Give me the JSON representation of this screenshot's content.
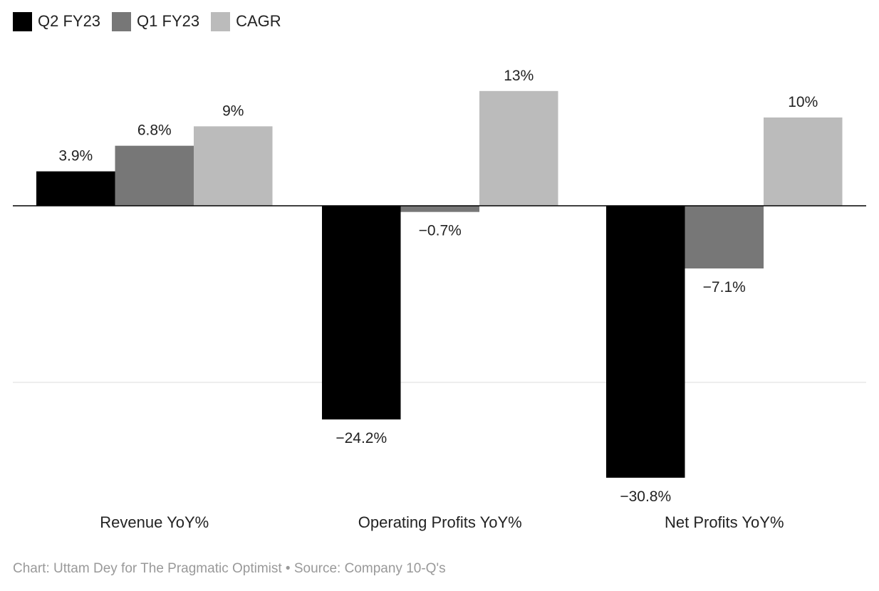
{
  "chart_data": {
    "type": "bar",
    "categories": [
      "Revenue YoY%",
      "Operating Profits YoY%",
      "Net Profits YoY%"
    ],
    "series": [
      {
        "name": "Q2 FY23",
        "values": [
          3.9,
          -24.2,
          -30.8
        ],
        "labels": [
          "3.9%",
          "−24.2%",
          "−30.8%"
        ],
        "color": "#000000"
      },
      {
        "name": "Q1 FY23",
        "values": [
          6.8,
          -0.7,
          -7.1
        ],
        "labels": [
          "6.8%",
          "−0.7%",
          "−7.1%"
        ],
        "color": "#777777"
      },
      {
        "name": "CAGR",
        "values": [
          9,
          13,
          10
        ],
        "labels": [
          "9%",
          "13%",
          "10%"
        ],
        "color": "#bbbbbb"
      }
    ],
    "ylim": [
      -30.8,
      13
    ],
    "gridlines": [
      -20
    ],
    "legend_position": "top-left"
  },
  "footer": "Chart: Uttam Dey for The Pragmatic Optimist • Source: Company 10-Q's"
}
